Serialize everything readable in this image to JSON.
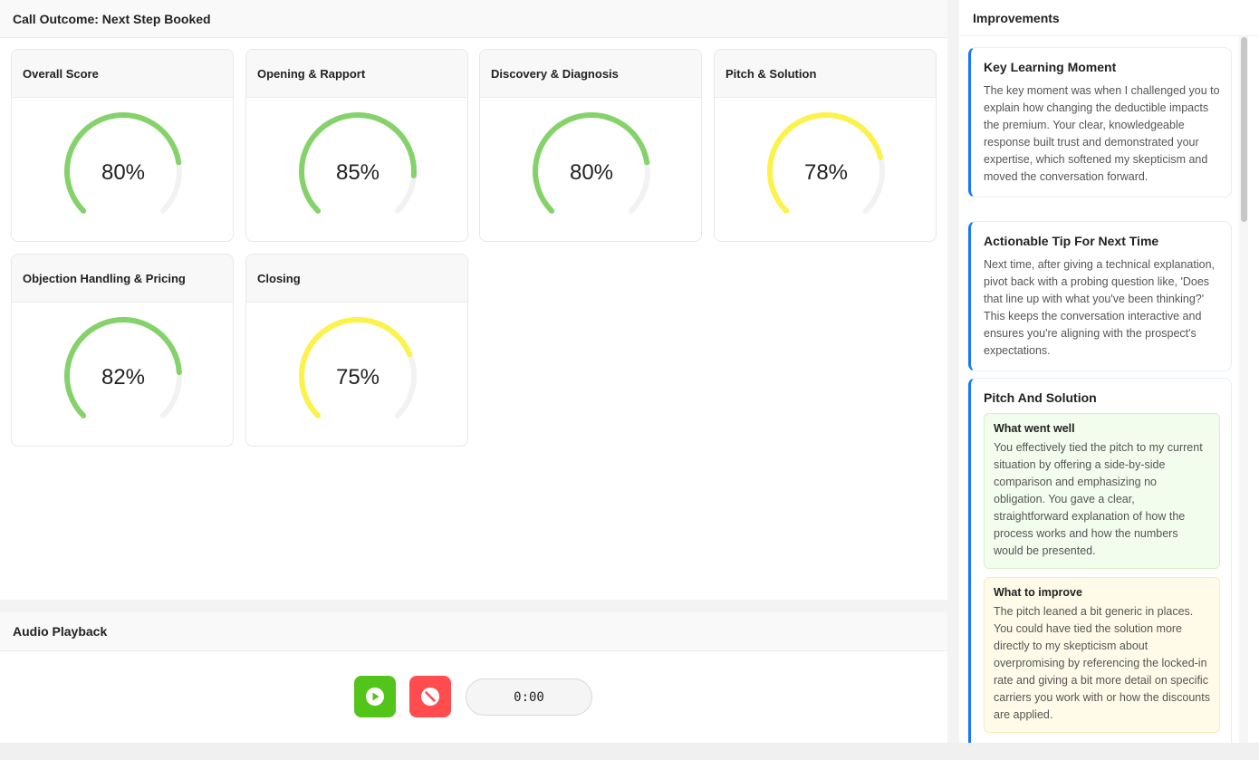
{
  "outcome": {
    "title": "Call Outcome: Next Step Booked"
  },
  "scores": [
    {
      "label": "Overall Score",
      "value": 80,
      "display": "80%",
      "color": "#85d26a"
    },
    {
      "label": "Opening & Rapport",
      "value": 85,
      "display": "85%",
      "color": "#85d26a"
    },
    {
      "label": "Discovery & Diagnosis",
      "value": 80,
      "display": "80%",
      "color": "#85d26a"
    },
    {
      "label": "Pitch & Solution",
      "value": 78,
      "display": "78%",
      "color": "#fbf34b"
    },
    {
      "label": "Objection Handling & Pricing",
      "value": 82,
      "display": "82%",
      "color": "#85d26a"
    },
    {
      "label": "Closing",
      "value": 75,
      "display": "75%",
      "color": "#fbf34b"
    }
  ],
  "gauge_track_color": "#f2f2f2",
  "audio": {
    "title": "Audio Playback",
    "play_icon": "play-icon",
    "stop_icon": "stop-icon",
    "time": "0:00",
    "play_color": "#52c41a",
    "stop_color": "#ff4d4f"
  },
  "improvements": {
    "title": "Improvements",
    "accent_color": "#1677ff",
    "key_moment": {
      "title": "Key Learning Moment",
      "body": "The key moment was when I challenged you to explain how changing the deductible impacts the premium. Your clear, knowledgeable response built trust and demonstrated your expertise, which softened my skepticism and moved the conversation forward."
    },
    "tip": {
      "title": "Actionable Tip For Next Time",
      "body": "Next time, after giving a technical explanation, pivot back with a probing question like, 'Does that line up with what you've been thinking?' This keeps the conversation interactive and ensures you're aligning with the prospect's expectations."
    },
    "pitch": {
      "title": "Pitch And Solution",
      "went_well_title": "What went well",
      "went_well_body": "You effectively tied the pitch to my current situation by offering a side-by-side comparison and emphasizing no obligation. You gave a clear, straightforward explanation of how the process works and how the numbers would be presented.",
      "improve_title": "What to improve",
      "improve_body": "The pitch leaned a bit generic in places. You could have tied the solution more directly to my skepticism about overpromising by referencing the locked-in rate and giving a bit more detail on specific carriers you work with or how the discounts are applied."
    }
  }
}
